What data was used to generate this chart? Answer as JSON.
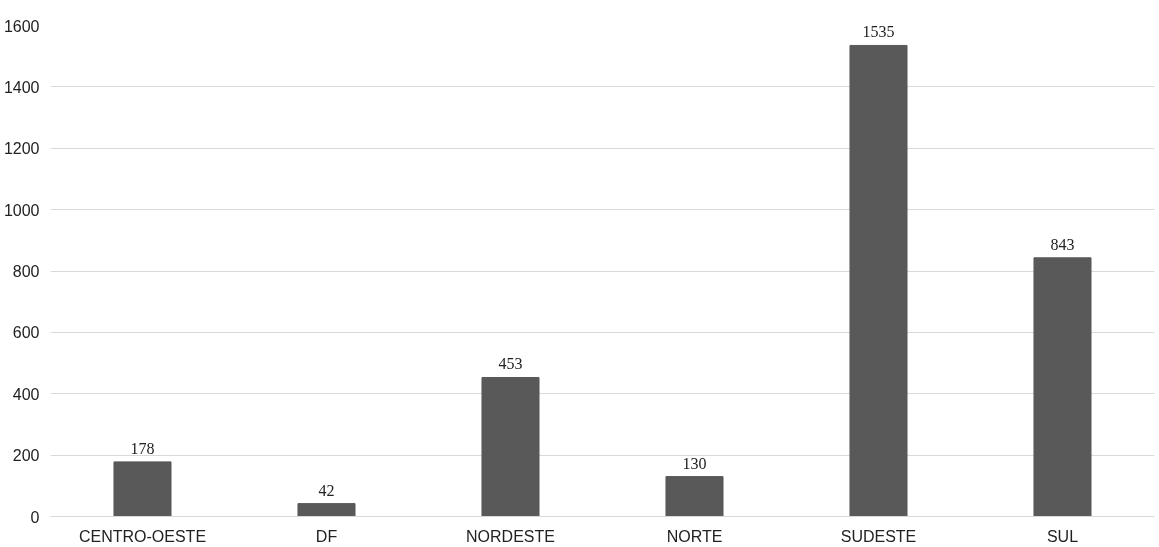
{
  "chart_data": {
    "type": "bar",
    "categories": [
      "CENTRO-OESTE",
      "DF",
      "NORDESTE",
      "NORTE",
      "SUDESTE",
      "SUL"
    ],
    "values": [
      178,
      42,
      453,
      130,
      1535,
      843
    ],
    "color": "#595959",
    "ylim": [
      0,
      1600
    ],
    "yticks": [
      0,
      200,
      400,
      600,
      800,
      1000,
      1200,
      1400,
      1600
    ],
    "grid": "y",
    "data_labels": true
  }
}
